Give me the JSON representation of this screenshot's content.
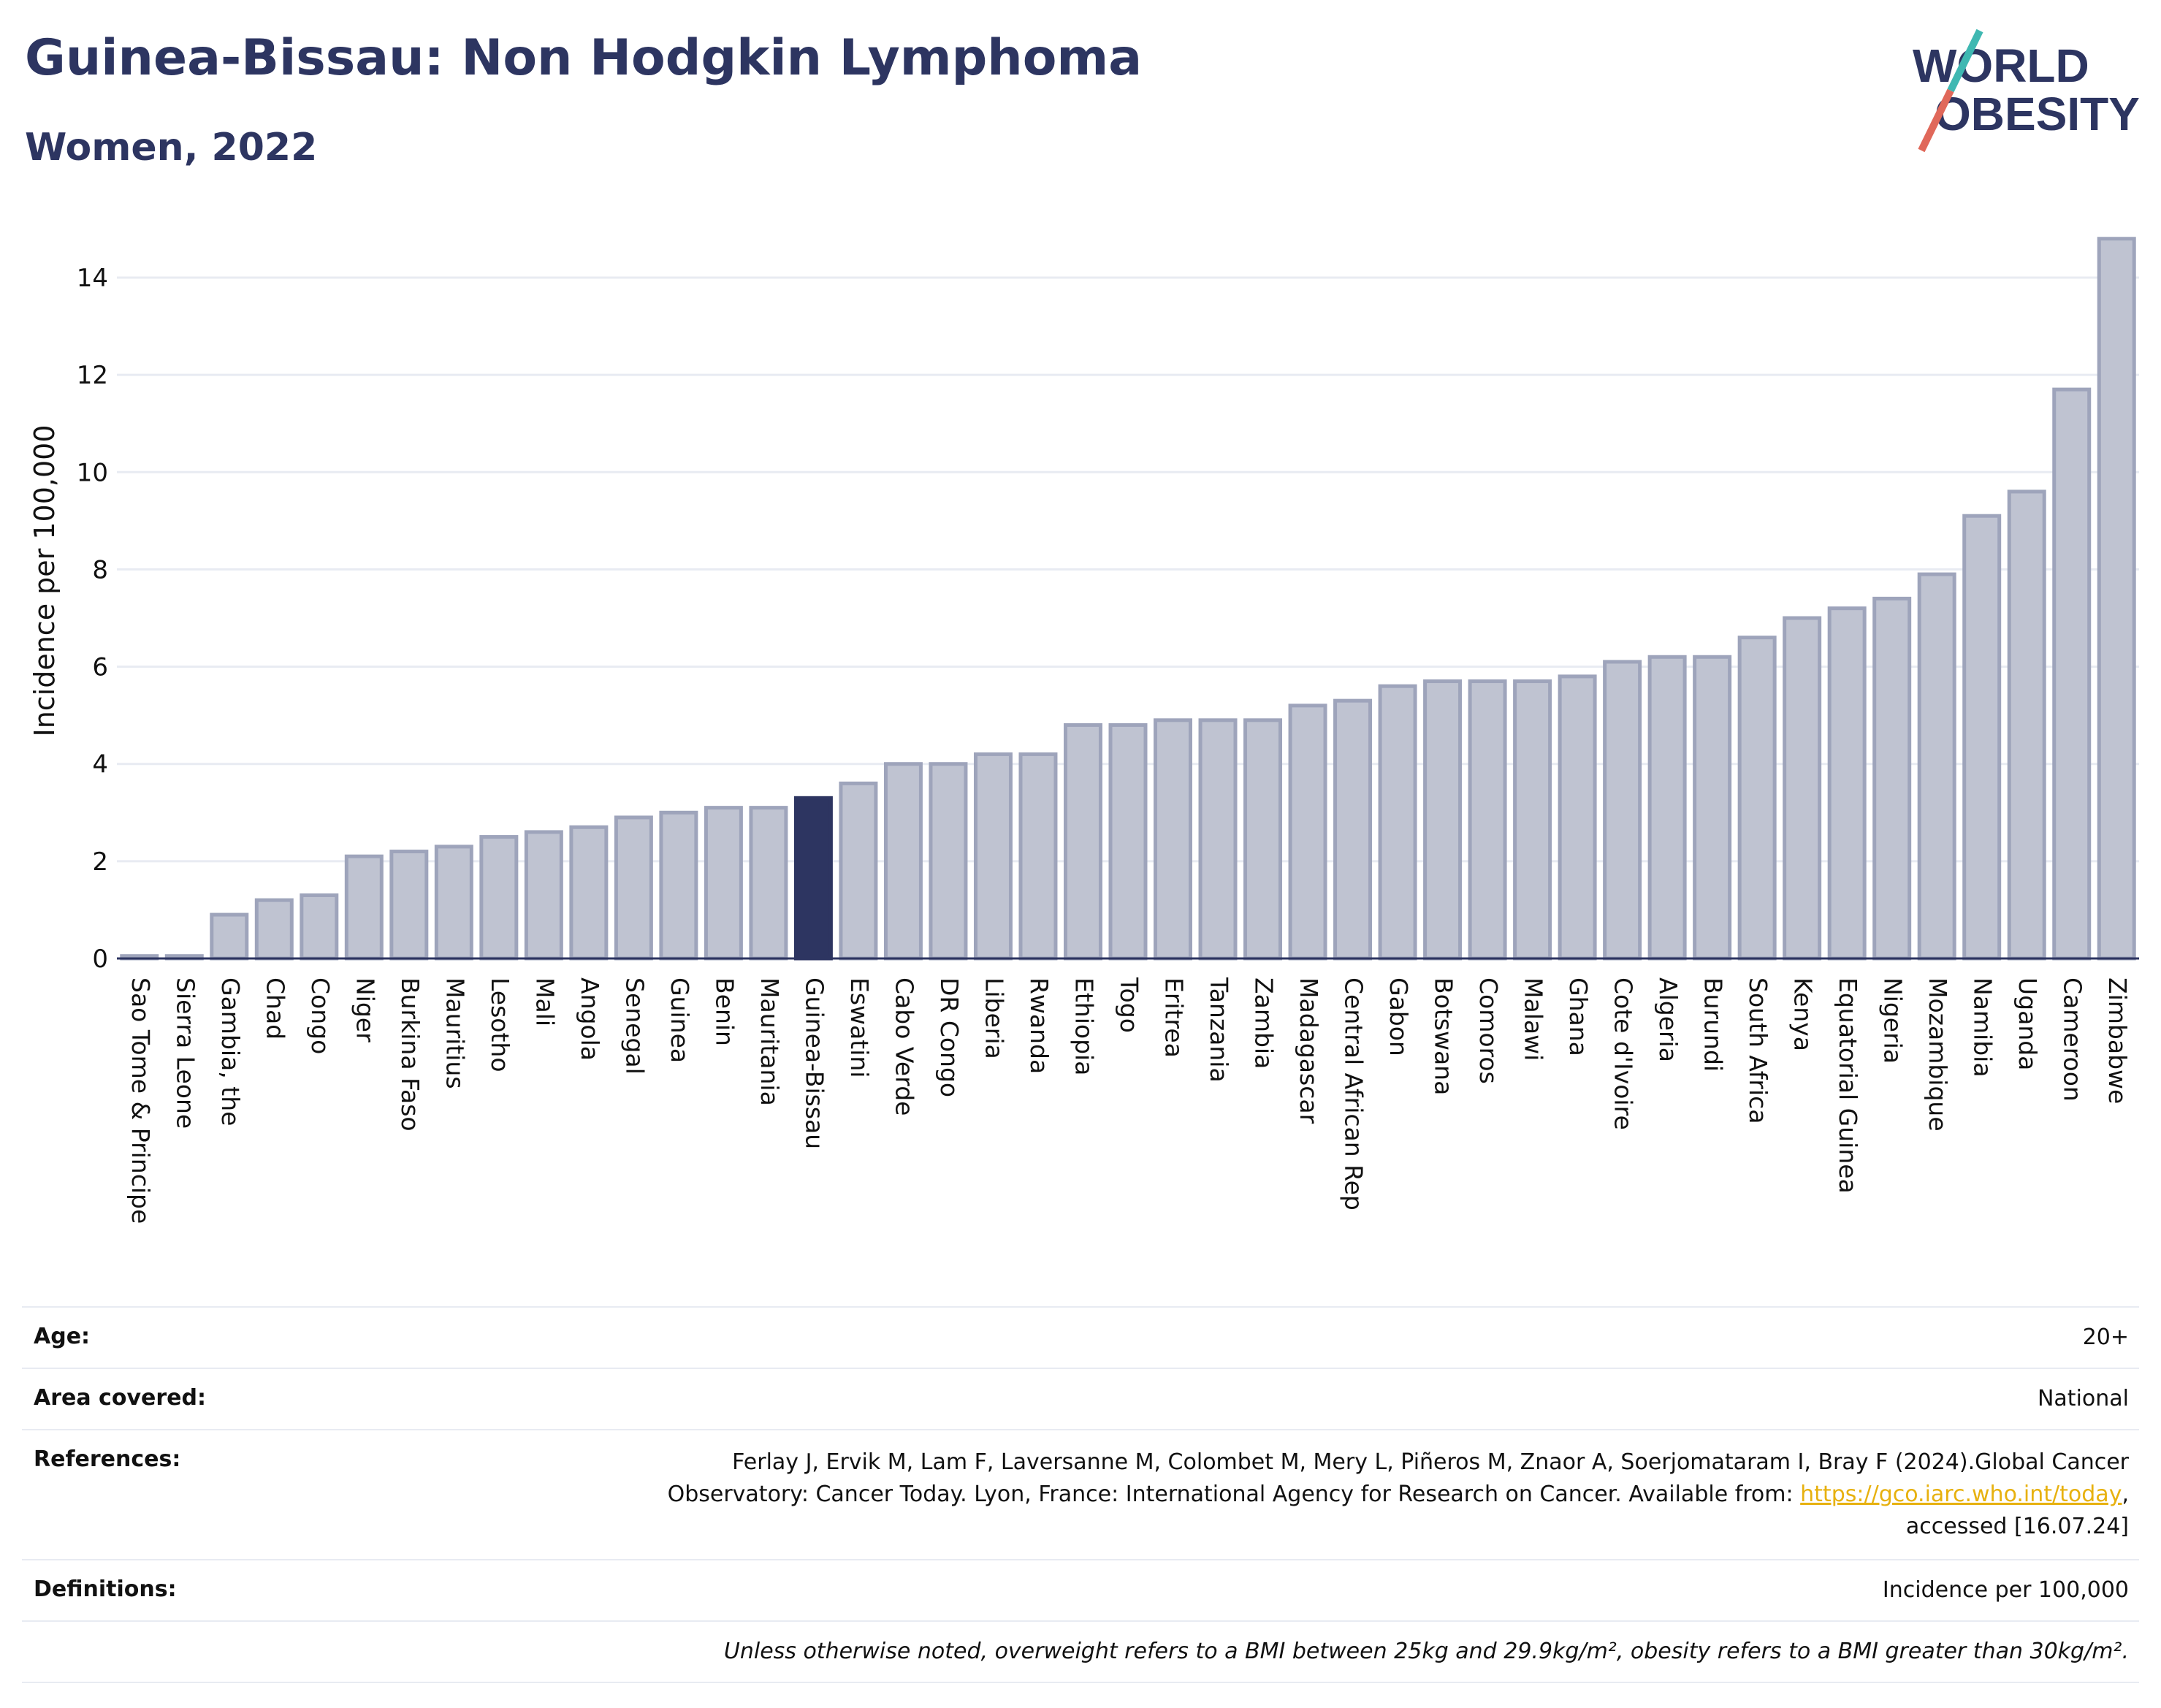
{
  "header": {
    "title": "Guinea-Bissau: Non Hodgkin Lymphoma",
    "subtitle": "Women, 2022"
  },
  "logo": {
    "line1": "WORLD",
    "line2": "OBESITY"
  },
  "colors": {
    "bar": "#bfc3d1",
    "bar_stroke": "#9ea4bb",
    "highlight": "#2d3561",
    "grid": "#e8ebf2",
    "text": "#2d3561",
    "link": "#e7b10f"
  },
  "chart_data": {
    "type": "bar",
    "ylabel": "Incidence per 100,000",
    "xlabel": "",
    "ylim": [
      0,
      15
    ],
    "yticks": [
      0,
      2,
      4,
      6,
      8,
      10,
      12,
      14
    ],
    "grid": true,
    "highlight": "Guinea-Bissau",
    "categories": [
      "Sao Tome & Principe",
      "Sierra Leone",
      "Gambia, the",
      "Chad",
      "Congo",
      "Niger",
      "Burkina Faso",
      "Mauritius",
      "Lesotho",
      "Mali",
      "Angola",
      "Senegal",
      "Guinea",
      "Benin",
      "Mauritania",
      "Guinea-Bissau",
      "Eswatini",
      "Cabo Verde",
      "DR Congo",
      "Liberia",
      "Rwanda",
      "Ethiopia",
      "Togo",
      "Eritrea",
      "Tanzania",
      "Zambia",
      "Madagascar",
      "Central African Rep",
      "Gabon",
      "Botswana",
      "Comoros",
      "Malawi",
      "Ghana",
      "Cote d'Ivoire",
      "Algeria",
      "Burundi",
      "South Africa",
      "Kenya",
      "Equatorial Guinea",
      "Nigeria",
      "Mozambique",
      "Namibia",
      "Uganda",
      "Cameroon",
      "Zimbabwe"
    ],
    "values": [
      0.05,
      0.05,
      0.9,
      1.2,
      1.3,
      2.1,
      2.2,
      2.3,
      2.5,
      2.6,
      2.7,
      2.9,
      3.0,
      3.1,
      3.1,
      3.3,
      3.6,
      4.0,
      4.0,
      4.2,
      4.2,
      4.8,
      4.8,
      4.9,
      4.9,
      4.9,
      5.2,
      5.3,
      5.6,
      5.7,
      5.7,
      5.7,
      5.8,
      6.1,
      6.2,
      6.2,
      6.6,
      7.0,
      7.2,
      7.4,
      7.9,
      9.1,
      9.6,
      11.7,
      14.8
    ]
  },
  "details": {
    "age_label": "Age:",
    "age_value": "20+",
    "area_label": "Area covered:",
    "area_value": "National",
    "references_label": "References:",
    "references_line1": "Ferlay J, Ervik M, Lam F, Laversanne M, Colombet M, Mery L, Piñeros M, Znaor A, Soerjomataram I, Bray F (2024).Global Cancer",
    "references_line2": "Observatory: Cancer Today. Lyon, France: International Agency for Research on Cancer. Available from:",
    "references_link": "https://gco.iarc.who.int/today",
    "references_line3": "accessed [16.07.24]",
    "definitions_label": "Definitions:",
    "definitions_value": "Incidence per 100,000",
    "note": "Unless otherwise noted, overweight refers to a BMI between 25kg and 29.9kg/m², obesity refers to a BMI greater than 30kg/m²."
  }
}
